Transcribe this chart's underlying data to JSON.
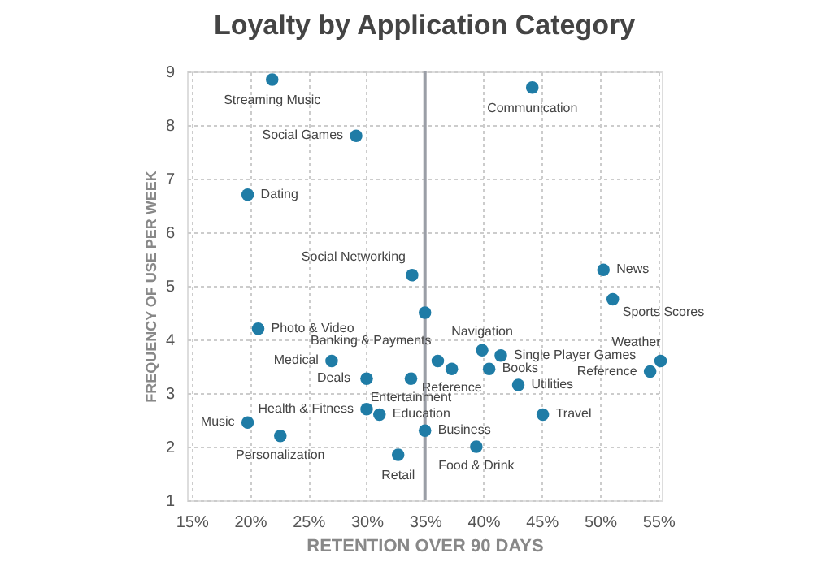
{
  "chart_data": {
    "type": "scatter",
    "title": "Loyalty by Application Category",
    "xlabel": "RETENTION OVER 90 DAYS",
    "ylabel": "FREQUENCY OF USE PER WEEK",
    "xlim": [
      14.6,
      55.3
    ],
    "ylim": [
      1,
      9
    ],
    "xticks": [
      {
        "value": 15,
        "label": "15%"
      },
      {
        "value": 20,
        "label": "20%"
      },
      {
        "value": 25,
        "label": "25%"
      },
      {
        "value": 30,
        "label": "30%"
      },
      {
        "value": 35,
        "label": "35%"
      },
      {
        "value": 40,
        "label": "40%"
      },
      {
        "value": 45,
        "label": "45%"
      },
      {
        "value": 50,
        "label": "50%"
      },
      {
        "value": 55,
        "label": "55%"
      }
    ],
    "yticks": [
      1,
      2,
      3,
      4,
      5,
      6,
      7,
      8,
      9
    ],
    "grid": true,
    "marker": "circle",
    "ref_lines": [
      {
        "axis": "x",
        "value": 35,
        "color": "#9a9ea6"
      }
    ],
    "series": [
      {
        "color": "#1f7ca6",
        "x": [
          21.9,
          44.2,
          29.1,
          19.8,
          33.9,
          50.3,
          51.1,
          35.0,
          20.7,
          27.0,
          36.1,
          30.0,
          33.8,
          30.0,
          31.1,
          19.8,
          22.6,
          35.0,
          32.7,
          37.3,
          39.9,
          40.5,
          41.5,
          43.0,
          45.1,
          39.4,
          54.3,
          55.2
        ],
        "values": [
          8.85,
          8.7,
          7.8,
          6.7,
          5.2,
          5.3,
          4.75,
          4.5,
          4.2,
          3.6,
          3.6,
          3.27,
          3.27,
          2.7,
          2.6,
          2.45,
          2.2,
          2.3,
          1.85,
          3.45,
          3.8,
          3.45,
          3.7,
          3.15,
          2.6,
          2.0,
          3.4,
          3.6
        ]
      }
    ],
    "annotations": [
      {
        "text": "Streaming Music",
        "x": 21.9,
        "y": 8.85
      },
      {
        "text": "Communication",
        "x": 44.2,
        "y": 8.7
      },
      {
        "text": "Social Games",
        "x": 29.1,
        "y": 7.8
      },
      {
        "text": "Dating",
        "x": 19.8,
        "y": 6.7
      },
      {
        "text": "Social Networking",
        "x": 33.9,
        "y": 5.2
      },
      {
        "text": "News",
        "x": 50.3,
        "y": 5.3
      },
      {
        "text": "Sports Scores",
        "x": 51.1,
        "y": 4.75
      },
      {
        "text": "Photo & Video",
        "x": 20.7,
        "y": 4.2
      },
      {
        "text": "Medical",
        "x": 27.0,
        "y": 3.6
      },
      {
        "text": "Banking & Payments",
        "x": 36.1,
        "y": 3.6
      },
      {
        "text": "Deals",
        "x": 30.0,
        "y": 3.27
      },
      {
        "text": "Entertainment",
        "x": 33.8,
        "y": 3.27
      },
      {
        "text": "Health & Fitness",
        "x": 30.0,
        "y": 2.7
      },
      {
        "text": "Education",
        "x": 31.1,
        "y": 2.6
      },
      {
        "text": "Music",
        "x": 19.8,
        "y": 2.45
      },
      {
        "text": "Personalization",
        "x": 22.6,
        "y": 2.2
      },
      {
        "text": "Business",
        "x": 35.0,
        "y": 2.3
      },
      {
        "text": "Retail",
        "x": 32.7,
        "y": 1.85
      },
      {
        "text": "Reference",
        "x": 37.3,
        "y": 3.45
      },
      {
        "text": "Navigation",
        "x": 39.9,
        "y": 3.8
      },
      {
        "text": "Books",
        "x": 40.5,
        "y": 3.45
      },
      {
        "text": "Single Player Games",
        "x": 41.5,
        "y": 3.7
      },
      {
        "text": "Utilities",
        "x": 43.0,
        "y": 3.15
      },
      {
        "text": "Travel",
        "x": 45.1,
        "y": 2.6
      },
      {
        "text": "Food & Drink",
        "x": 39.4,
        "y": 2.0
      },
      {
        "text": "Reference",
        "x": 54.3,
        "y": 3.4
      },
      {
        "text": "Weather",
        "x": 55.2,
        "y": 3.6
      }
    ]
  }
}
